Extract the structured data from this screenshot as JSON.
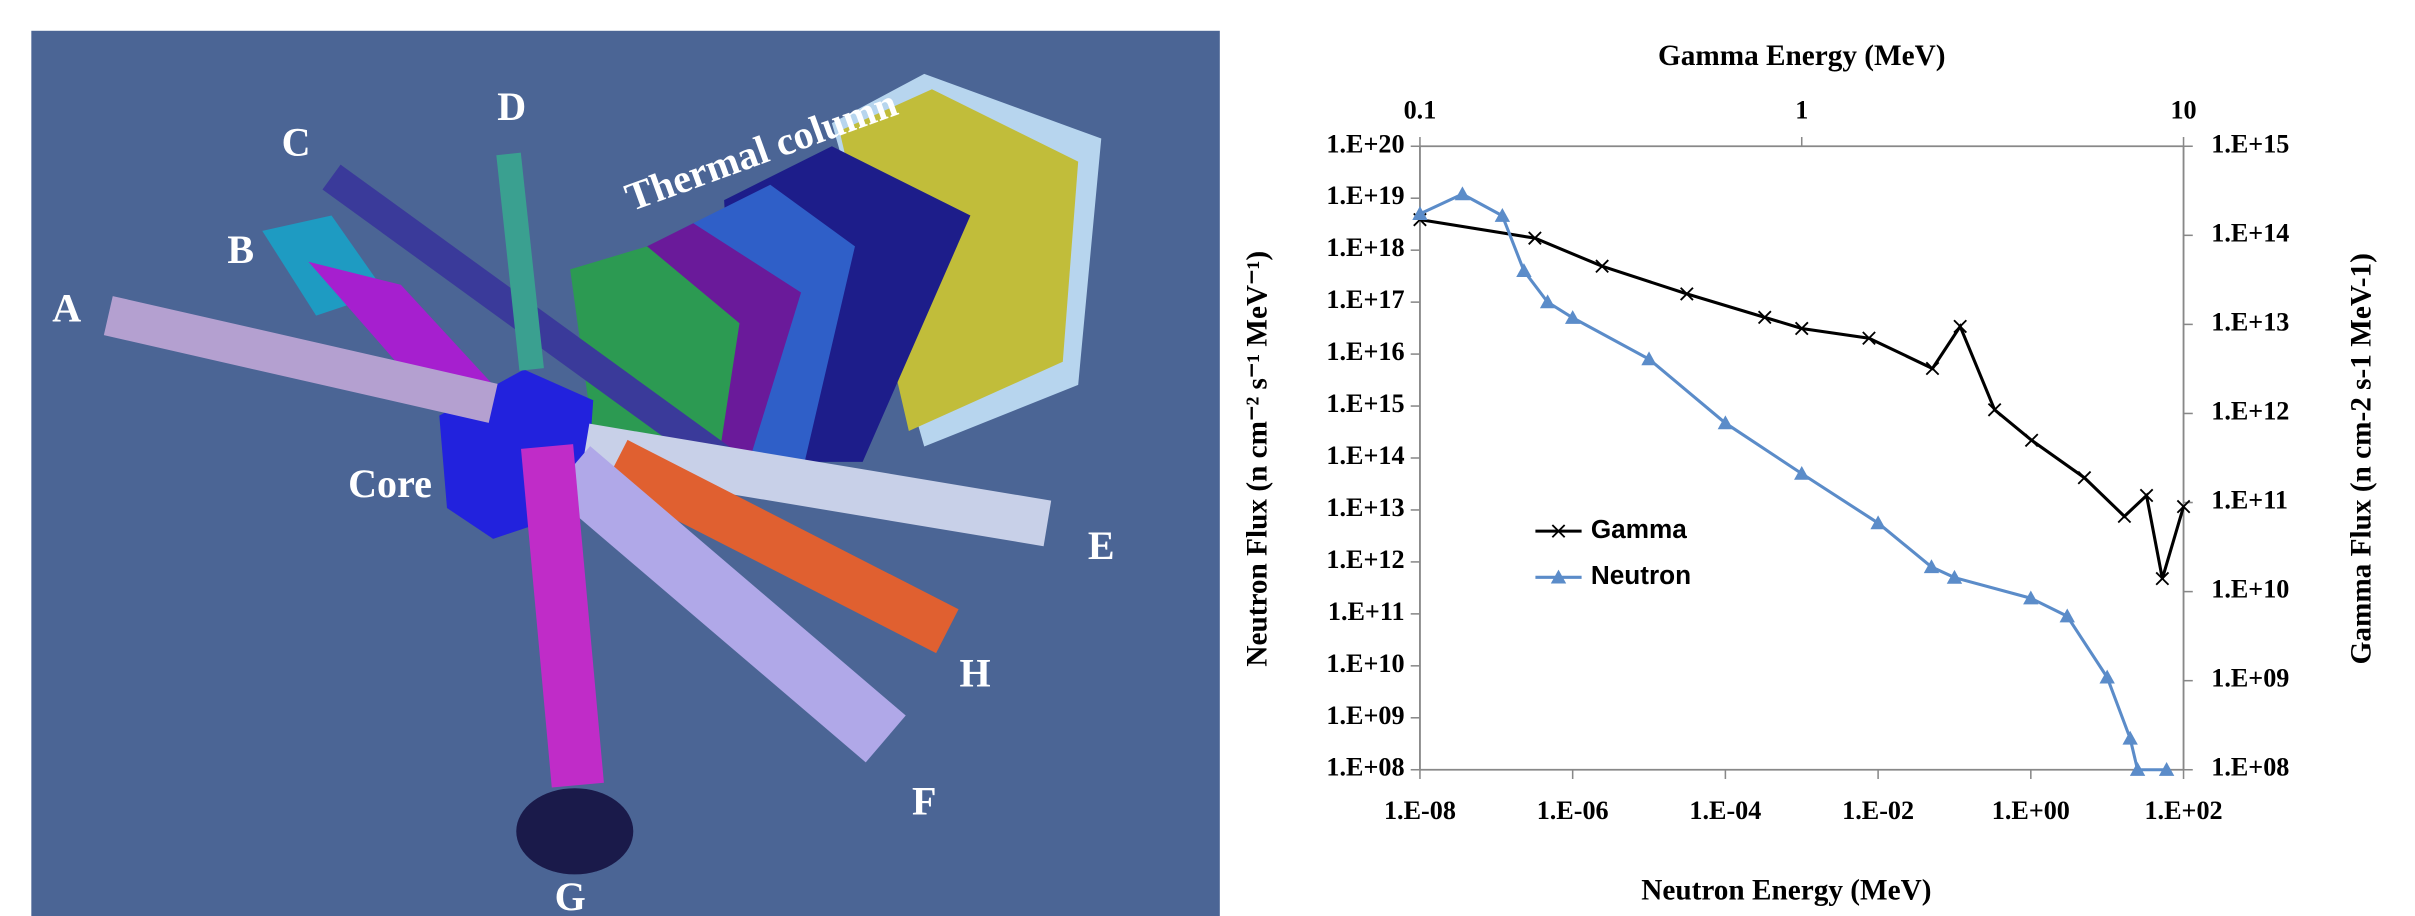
{
  "diagram": {
    "labels": [
      "A",
      "B",
      "C",
      "D",
      "Thermal column",
      "Core",
      "E",
      "H",
      "F",
      "G"
    ]
  },
  "chart_data": {
    "type": "line",
    "x_title": "Neutron Energy (MeV)",
    "x2_title": "Gamma Energy (MeV)",
    "y_title": "Neutron Flux (n cm⁻² s⁻¹ MeV⁻¹)",
    "y2_title": "Gamma Flux (n cm-2 s-1 MeV-1)",
    "xlog": true,
    "ylog": true,
    "xlim": [
      1e-08,
      100
    ],
    "xticks": [
      {
        "value": 1e-08,
        "label": "1.E-08"
      },
      {
        "value": 1e-06,
        "label": "1.E-06"
      },
      {
        "value": 0.0001,
        "label": "1.E-04"
      },
      {
        "value": 0.01,
        "label": "1.E-02"
      },
      {
        "value": 1,
        "label": "1.E+00"
      },
      {
        "value": 100,
        "label": "1.E+02"
      }
    ],
    "x2lim": [
      0.1,
      10
    ],
    "x2ticks": [
      0.1,
      1,
      10
    ],
    "ylim": [
      100000000.0,
      1e+20
    ],
    "yticks": [
      {
        "value": 100000000.0,
        "label": "1.E+08"
      },
      {
        "value": 1000000000.0,
        "label": "1.E+09"
      },
      {
        "value": 10000000000.0,
        "label": "1.E+10"
      },
      {
        "value": 100000000000.0,
        "label": "1.E+11"
      },
      {
        "value": 1000000000000.0,
        "label": "1.E+12"
      },
      {
        "value": 10000000000000.0,
        "label": "1.E+13"
      },
      {
        "value": 100000000000000.0,
        "label": "1.E+14"
      },
      {
        "value": 1000000000000000.0,
        "label": "1.E+15"
      },
      {
        "value": 1e+16,
        "label": "1.E+16"
      },
      {
        "value": 1e+17,
        "label": "1.E+17"
      },
      {
        "value": 1e+18,
        "label": "1.E+18"
      },
      {
        "value": 1e+19,
        "label": "1.E+19"
      },
      {
        "value": 1e+20,
        "label": "1.E+20"
      }
    ],
    "y2lim": [
      100000000.0,
      1000000000000000.0
    ],
    "y2ticks": [
      {
        "value": 100000000.0,
        "label": "1.E+08"
      },
      {
        "value": 1000000000.0,
        "label": "1.E+09"
      },
      {
        "value": 10000000000.0,
        "label": "1.E+10"
      },
      {
        "value": 100000000000.0,
        "label": "1.E+11"
      },
      {
        "value": 1000000000000.0,
        "label": "1.E+12"
      },
      {
        "value": 10000000000000.0,
        "label": "1.E+13"
      },
      {
        "value": 100000000000000.0,
        "label": "1.E+14"
      },
      {
        "value": 1000000000000000.0,
        "label": "1.E+15"
      }
    ],
    "legend": "lower-left",
    "series": [
      {
        "name": "Gamma",
        "color": "#000000",
        "marker": "x",
        "axis": "y2",
        "xaxis": "x2",
        "x": [
          0.1,
          0.2,
          0.3,
          0.5,
          0.8,
          1,
          1.5,
          2.2,
          2.6,
          3.2,
          4,
          5.5,
          7,
          8,
          8.8,
          10
        ],
        "values": [
          150000000000000.0,
          93000000000000.0,
          45000000000000.0,
          22000000000000.0,
          12000000000000.0,
          9000000000000.0,
          7000000000000.0,
          3200000000000.0,
          9500000000000.0,
          1100000000000.0,
          500000000000.0,
          190000000000.0,
          70000000000.0,
          120000000000.0,
          14000000000.0,
          90000000000.0
        ]
      },
      {
        "name": "Neutron",
        "color": "#5b8cc9",
        "marker": "triangle",
        "x": [
          1e-08,
          3.6e-08,
          1.2e-07,
          2.3e-07,
          4.7e-07,
          1e-06,
          1e-05,
          0.0001,
          0.001,
          0.01,
          0.05,
          0.1,
          1,
          3,
          10,
          20,
          25,
          60
        ],
        "values": [
          5e+18,
          1.2e+19,
          4.6e+18,
          4e+17,
          1e+17,
          5e+16,
          8000000000000000.0,
          470000000000000.0,
          50000000000000.0,
          5600000000000.0,
          800000000000.0,
          500000000000.0,
          200000000000.0,
          90000000000.0,
          6000000000.0,
          400000000.0,
          100000000.0,
          100000000.0
        ]
      }
    ]
  }
}
